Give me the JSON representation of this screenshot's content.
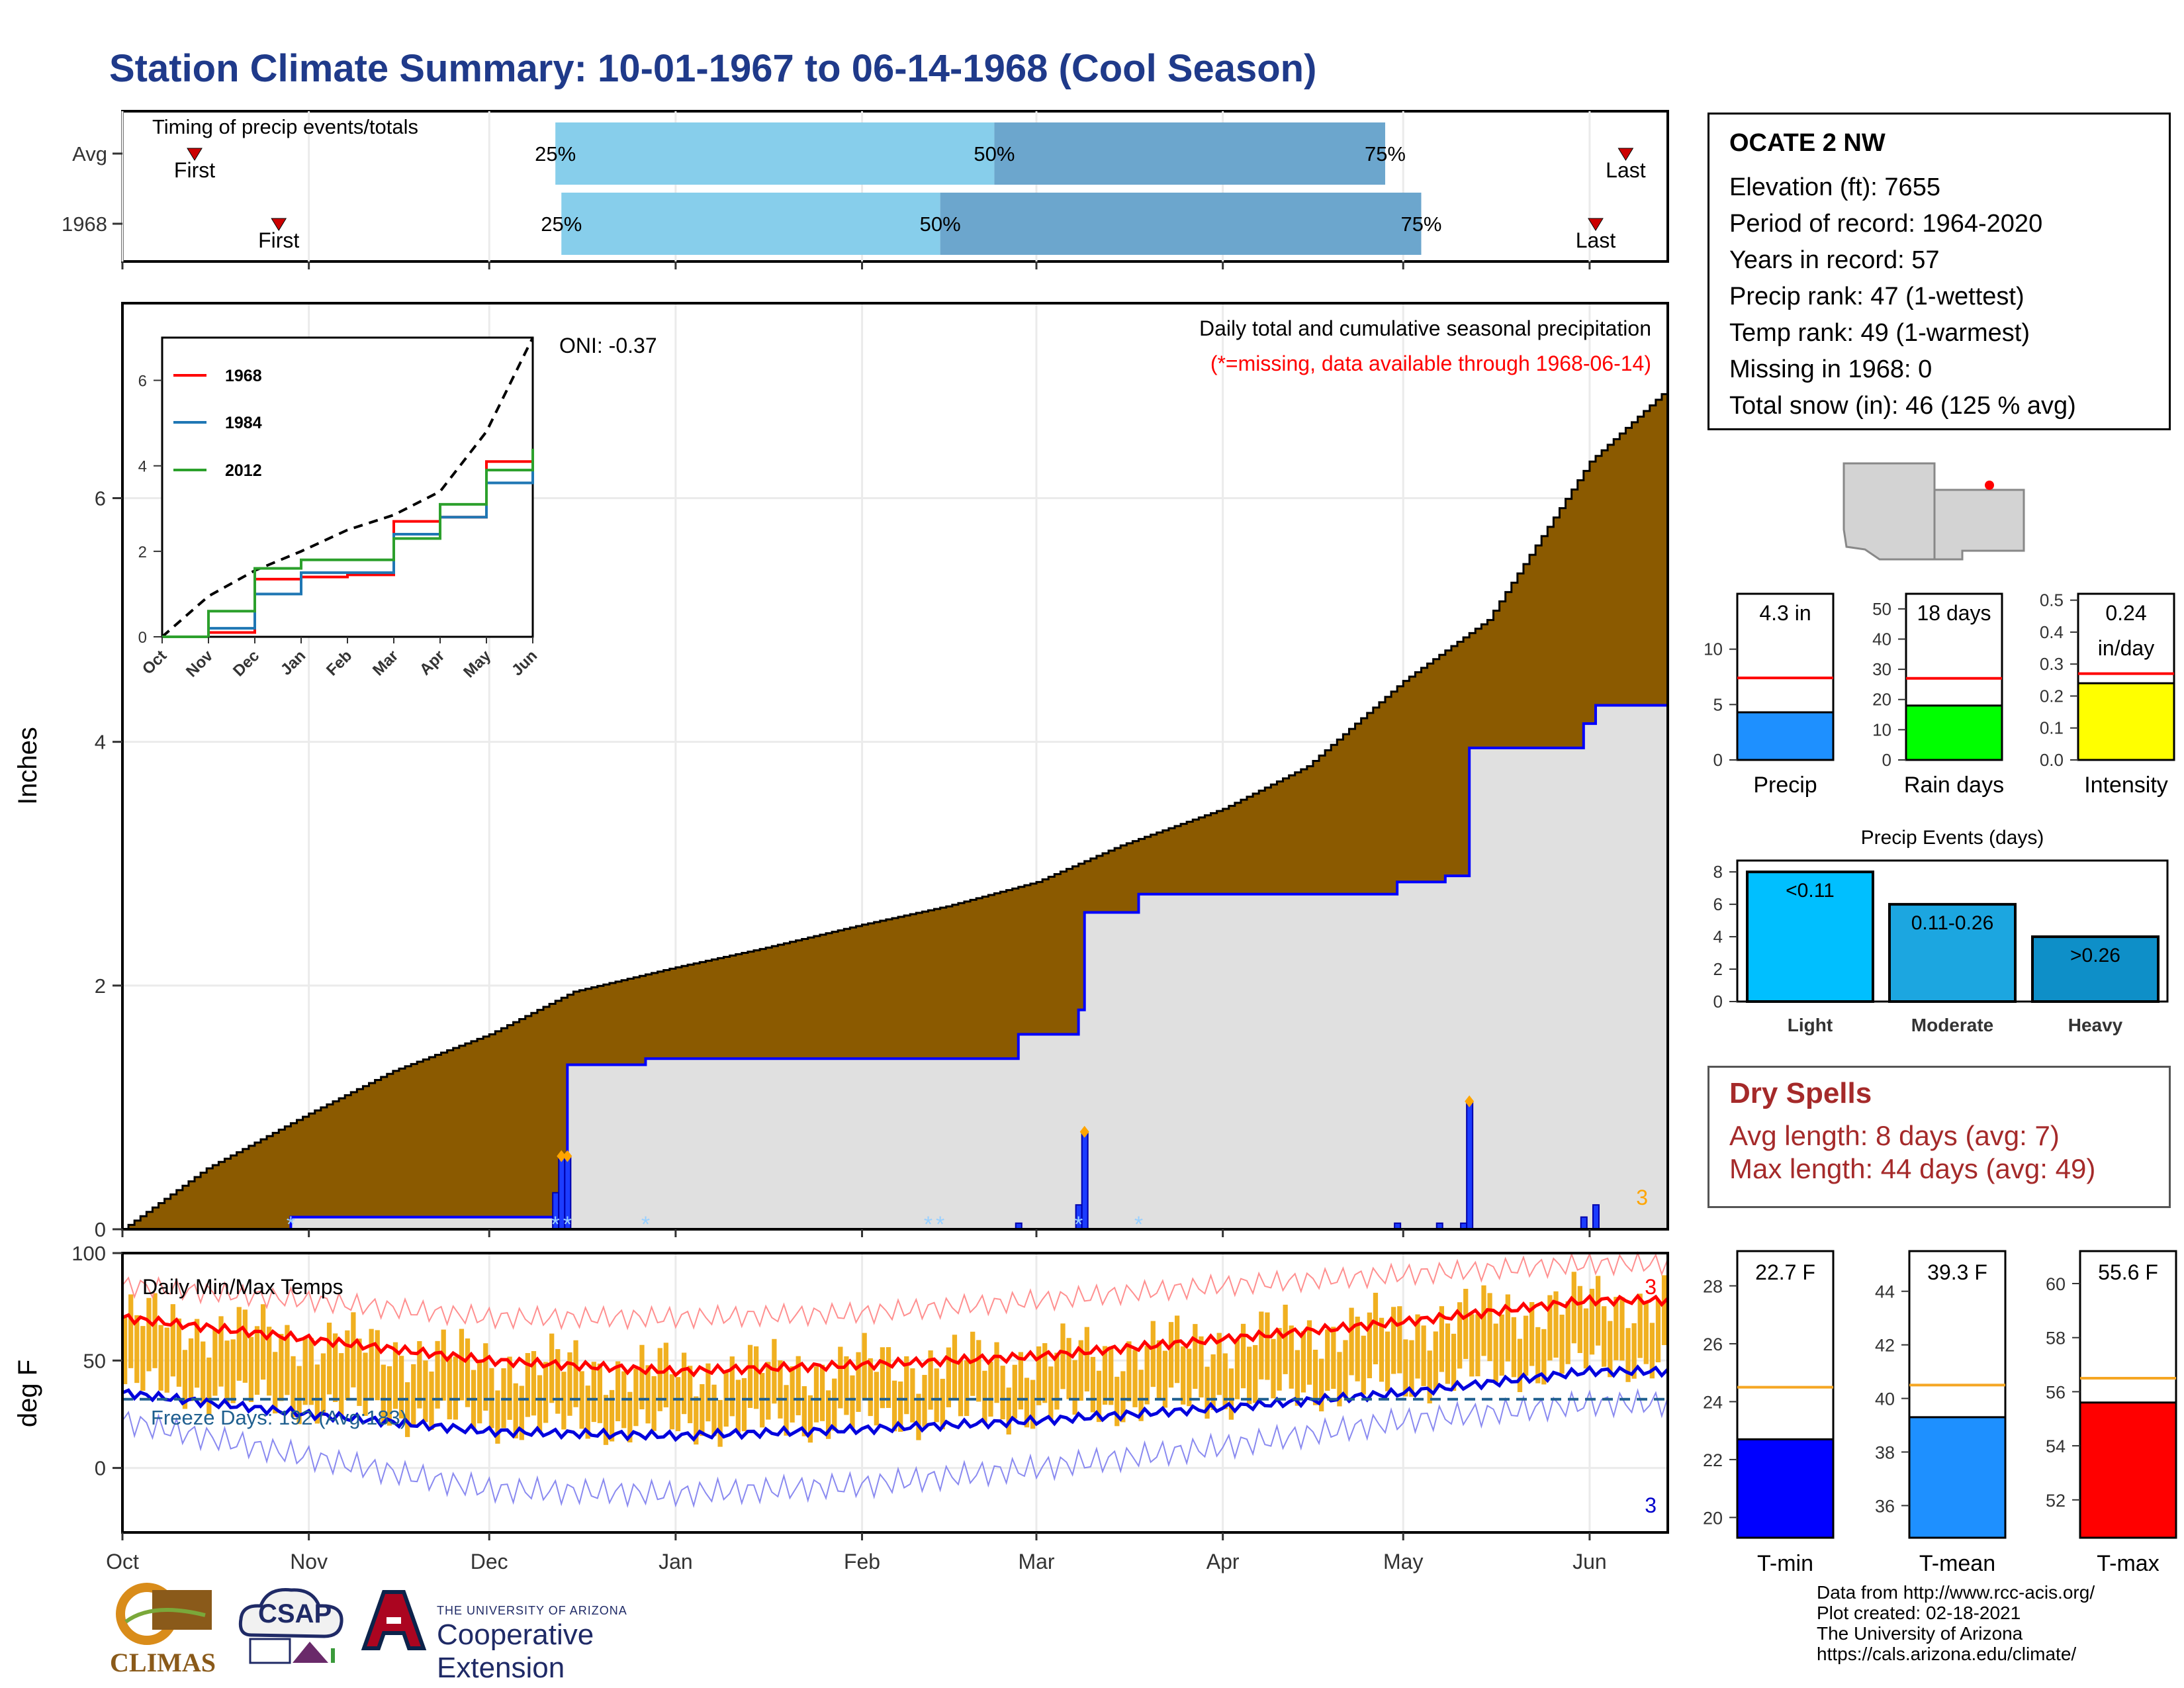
{
  "title": "Station Climate Summary: 10-01-1967 to 06-14-1968 (Cool Season)",
  "colors": {
    "title": "#1f3a8a",
    "precip_fill": "#8b5a00",
    "cum_line": "#0000ff",
    "rain_days_bar": "#00ff00",
    "intensity_bar": "#ffff00",
    "precip_bar": "#1e90ff",
    "tmin": "#0000ff",
    "tmean": "#1e90ff",
    "tmax": "#ff0000",
    "temp_bars": "#f0b020",
    "avg_line": "#ff0000",
    "temp_avg_line": "#f5a623"
  },
  "timing_chart": {
    "title": "Timing of precip events/totals",
    "rows": [
      {
        "label": "Avg",
        "p25": "25%",
        "p50": "50%",
        "p75": "75%",
        "first": "First",
        "last": "Last",
        "first_date": "1967-10-13",
        "q25_date": "1967-12-12",
        "q50_date": "1968-02-23",
        "q75_date": "1968-04-28",
        "last_date": "1968-06-07"
      },
      {
        "label": "1968",
        "p25": "25%",
        "p50": "50%",
        "p75": "75%",
        "first": "First",
        "last": "Last",
        "first_date": "1967-10-27",
        "q25_date": "1967-12-13",
        "q50_date": "1968-02-14",
        "q75_date": "1968-05-04",
        "last_date": "1968-06-02"
      }
    ]
  },
  "precip_chart": {
    "title": "Daily total and cumulative seasonal precipitation",
    "subtitle": "(*=missing, data available through 1968-06-14)",
    "oni": "ONI: -0.37",
    "ylabel": "Inches",
    "yticks": [
      "0",
      "2",
      "4",
      "6"
    ],
    "ylim": [
      0,
      7.6
    ],
    "count_label": "3",
    "xticks": [
      "Oct",
      "Nov",
      "Dec",
      "Jan",
      "Feb",
      "Mar",
      "Apr",
      "May",
      "Jun"
    ]
  },
  "inset_chart": {
    "series": [
      "1968",
      "1984",
      "2012"
    ],
    "yticks": [
      "0",
      "2",
      "4",
      "6"
    ],
    "xticks": [
      "Oct",
      "Nov",
      "Dec",
      "Jan",
      "Feb",
      "Mar",
      "Apr",
      "May",
      "Jun"
    ]
  },
  "temp_chart": {
    "title": "Daily Min/Max Temps",
    "ylabel": "deg F",
    "yticks": [
      "0",
      "50",
      "100"
    ],
    "freeze_label": "Freeze Days: 192 (Avg:183)",
    "count_max": "3",
    "count_min": "3",
    "xticks": [
      "Oct",
      "Nov",
      "Dec",
      "Jan",
      "Feb",
      "Mar",
      "Apr",
      "May",
      "Jun"
    ]
  },
  "station": {
    "name": "OCATE 2 NW",
    "elevation": "Elevation (ft): 7655",
    "period": "Period of record: 1964-2020",
    "years": "Years in record: 57",
    "precip_rank": "Precip rank: 47 (1-wettest)",
    "temp_rank": "Temp rank: 49 (1-warmest)",
    "missing": "Missing in 1968: 0",
    "snow": "Total snow (in): 46 (125 % avg)"
  },
  "gauges": [
    {
      "label": "Precip",
      "value_text": "4.3 in",
      "value": 4.3,
      "avg": 7.4,
      "ymax": 15,
      "yticks": [
        "0",
        "5",
        "10"
      ],
      "tickvals": [
        0,
        5,
        10
      ]
    },
    {
      "label": "Rain days",
      "value_text": "18 days",
      "value": 18,
      "avg": 27,
      "ymax": 55,
      "yticks": [
        "0",
        "10",
        "20",
        "30",
        "40",
        "50"
      ],
      "tickvals": [
        0,
        10,
        20,
        30,
        40,
        50
      ]
    },
    {
      "label": "Intensity",
      "value_text": "0.24",
      "value_text2": "in/day",
      "value": 0.24,
      "avg": 0.27,
      "ymax": 0.52,
      "yticks": [
        "0.0",
        "0.1",
        "0.2",
        "0.3",
        "0.4",
        "0.5"
      ],
      "tickvals": [
        0,
        0.1,
        0.2,
        0.3,
        0.4,
        0.5
      ]
    }
  ],
  "events_chart": {
    "title": "Precip Events (days)",
    "categories": [
      "Light",
      "Moderate",
      "Heavy"
    ],
    "bar_labels": [
      "<0.11",
      "0.11-0.26",
      ">0.26"
    ],
    "values": [
      8,
      6,
      4
    ],
    "yticks": [
      "0",
      "2",
      "4",
      "6",
      "8"
    ],
    "bar_colors": [
      "#00bfff",
      "#1ca6e0",
      "#0e8fc8"
    ]
  },
  "dry_spells": {
    "title": "Dry Spells",
    "avg": "Avg length: 8 days (avg: 7)",
    "max": "Max length: 44 days (avg: 49)"
  },
  "temp_gauges": [
    {
      "label": "T-min",
      "value_text": "22.7 F",
      "value": 22.7,
      "avg": 24.5,
      "ymin": 19.3,
      "ymax": 29.2,
      "yticks": [
        "20",
        "22",
        "24",
        "26",
        "28"
      ],
      "tickvals": [
        20,
        22,
        24,
        26,
        28
      ]
    },
    {
      "label": "T-mean",
      "value_text": "39.3 F",
      "value": 39.3,
      "avg": 40.5,
      "ymin": 34.8,
      "ymax": 45.5,
      "yticks": [
        "36",
        "38",
        "40",
        "42",
        "44"
      ],
      "tickvals": [
        36,
        38,
        40,
        42,
        44
      ]
    },
    {
      "label": "T-max",
      "value_text": "55.6 F",
      "value": 55.6,
      "avg": 56.5,
      "ymin": 50.6,
      "ymax": 61.2,
      "yticks": [
        "52",
        "54",
        "56",
        "58",
        "60"
      ],
      "tickvals": [
        52,
        54,
        56,
        58,
        60
      ]
    }
  ],
  "credits": [
    "Data from http://www.rcc-acis.org/",
    "Plot created: 02-18-2021",
    "The University of Arizona",
    "https://cals.arizona.edu/climate/"
  ],
  "logos": {
    "climas": "CLIMAS",
    "csap": "CSAP",
    "csap_url": "http://cals.arizona.edu/climate",
    "ua_small": "THE UNIVERSITY OF ARIZONA",
    "ua_big": "Cooperative Extension"
  },
  "chart_data": [
    {
      "type": "area",
      "title": "Daily total and cumulative seasonal precipitation",
      "ylabel": "Inches",
      "ylim": [
        0,
        7.6
      ],
      "x_range": [
        "1967-10-01",
        "1968-06-14"
      ],
      "series": [
        {
          "name": "cumulative avg",
          "x": [
            "1967-10-01",
            "1967-10-15",
            "1967-11-01",
            "1967-11-15",
            "1967-12-01",
            "1967-12-15",
            "1968-01-01",
            "1968-01-15",
            "1968-02-01",
            "1968-02-15",
            "1968-03-01",
            "1968-03-15",
            "1968-04-01",
            "1968-04-15",
            "1968-05-01",
            "1968-05-15",
            "1968-06-01",
            "1968-06-14"
          ],
          "values": [
            0.0,
            0.5,
            0.95,
            1.3,
            1.6,
            1.95,
            2.15,
            2.3,
            2.5,
            2.65,
            2.85,
            3.15,
            3.45,
            3.8,
            4.5,
            5.0,
            6.3,
            6.9
          ]
        },
        {
          "name": "cumulative 1968",
          "x": [
            "1967-10-01",
            "1967-10-29",
            "1967-12-13",
            "1967-12-14",
            "1967-12-27",
            "1968-02-12",
            "1968-02-27",
            "1968-03-08",
            "1968-03-09",
            "1968-03-18",
            "1968-04-30",
            "1968-05-08",
            "1968-05-12",
            "1968-05-31",
            "1968-06-02",
            "1968-06-14"
          ],
          "values": [
            0.0,
            0.1,
            0.12,
            1.35,
            1.4,
            1.4,
            1.6,
            1.8,
            2.6,
            2.75,
            2.85,
            2.9,
            3.95,
            4.15,
            4.3,
            4.3
          ]
        },
        {
          "name": "daily 1968",
          "x": [
            "1967-12-12",
            "1967-12-13",
            "1967-12-14",
            "1968-02-27",
            "1968-03-08",
            "1968-03-09",
            "1968-04-30",
            "1968-05-07",
            "1968-05-11",
            "1968-05-12",
            "1968-05-31",
            "1968-06-02"
          ],
          "values": [
            0.3,
            0.6,
            0.6,
            0.05,
            0.2,
            0.8,
            0.05,
            0.05,
            0.05,
            1.05,
            0.1,
            0.2
          ]
        }
      ]
    },
    {
      "type": "line",
      "title": "",
      "x": [
        "Oct",
        "Nov",
        "Dec",
        "Jan",
        "Feb",
        "Mar",
        "Apr",
        "May",
        "Jun"
      ],
      "ylim": [
        0,
        7
      ],
      "series": [
        {
          "name": "avg",
          "values": [
            0.0,
            0.95,
            1.55,
            2.0,
            2.5,
            2.85,
            3.4,
            4.8,
            7.0
          ]
        },
        {
          "name": "1968",
          "values": [
            0.0,
            0.1,
            1.35,
            1.4,
            1.45,
            2.7,
            2.8,
            4.1,
            4.3
          ]
        },
        {
          "name": "1984",
          "values": [
            0.0,
            0.2,
            1.0,
            1.5,
            1.5,
            2.4,
            2.8,
            3.6,
            4.2
          ]
        },
        {
          "name": "2012",
          "values": [
            0.0,
            0.6,
            1.6,
            1.8,
            1.8,
            2.3,
            3.1,
            3.9,
            4.4
          ]
        }
      ]
    },
    {
      "type": "line",
      "title": "Daily Min/Max Temps",
      "ylabel": "deg F",
      "ylim": [
        -30,
        100
      ],
      "x": [
        "Oct",
        "Nov",
        "Dec",
        "Jan",
        "Feb",
        "Mar",
        "Apr",
        "May",
        "Jun"
      ],
      "series": [
        {
          "name": "avg max",
          "values": [
            70,
            60,
            50,
            45,
            48,
            52,
            60,
            68,
            78
          ]
        },
        {
          "name": "avg min",
          "values": [
            35,
            25,
            17,
            15,
            18,
            22,
            28,
            35,
            45
          ]
        },
        {
          "name": "record max",
          "values": [
            85,
            78,
            70,
            70,
            72,
            78,
            85,
            90,
            95
          ]
        },
        {
          "name": "record min",
          "values": [
            22,
            5,
            -10,
            -12,
            -8,
            0,
            10,
            22,
            30
          ]
        }
      ]
    },
    {
      "type": "bar",
      "title": "Precip Events (days)",
      "categories": [
        "Light",
        "Moderate",
        "Heavy"
      ],
      "values": [
        8,
        6,
        4
      ]
    },
    {
      "type": "bar",
      "categories": [
        "Precip",
        "Rain days",
        "Intensity"
      ],
      "values": [
        4.3,
        18,
        0.24
      ]
    },
    {
      "type": "bar",
      "categories": [
        "T-min",
        "T-mean",
        "T-max"
      ],
      "values": [
        22.7,
        39.3,
        55.6
      ]
    }
  ]
}
